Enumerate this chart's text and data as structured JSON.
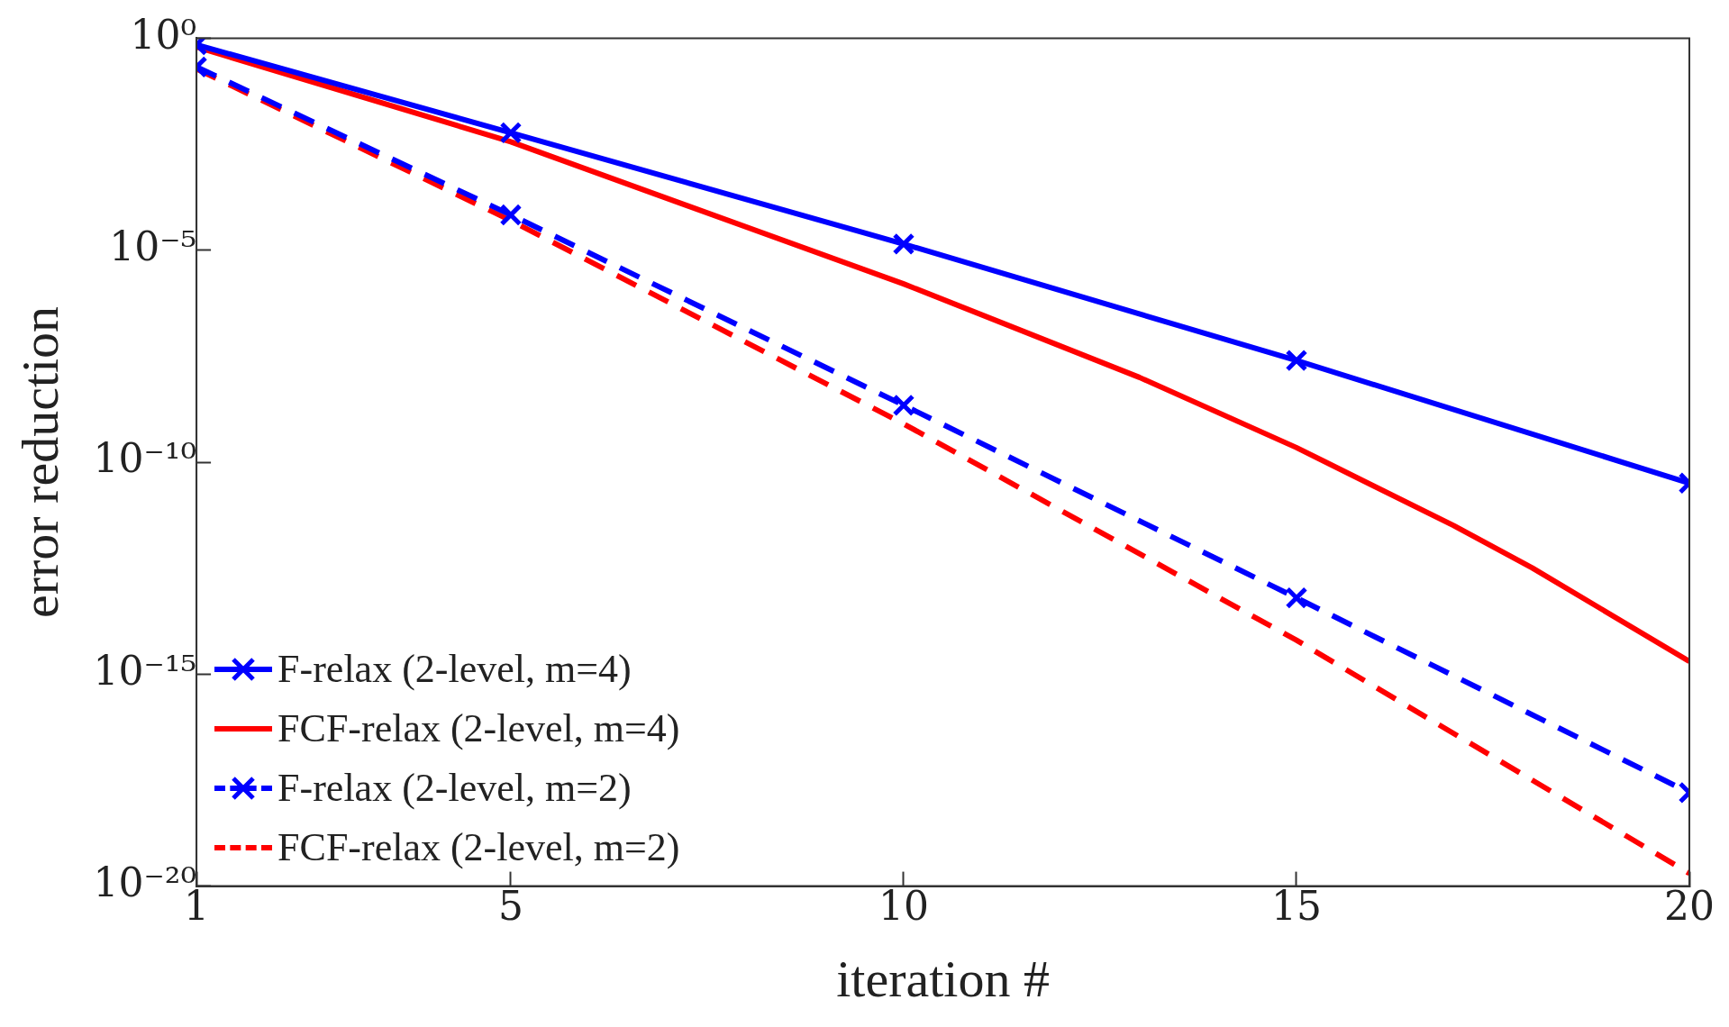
{
  "chart_data": {
    "type": "line",
    "xlabel": "iteration #",
    "ylabel": "error reduction",
    "log": "y",
    "xlim": [
      1,
      20
    ],
    "xticks": [
      1,
      5,
      10,
      15,
      20
    ],
    "ylim": [
      1e-20,
      1
    ],
    "yticks": [
      {
        "value": 1,
        "label": "10⁰"
      },
      {
        "value": 1e-05,
        "label": "10⁻⁵"
      },
      {
        "value": 1e-10,
        "label": "10⁻¹⁰"
      },
      {
        "value": 1e-15,
        "label": "10⁻¹⁵"
      },
      {
        "value": 1e-20,
        "label": "10⁻²⁰"
      }
    ],
    "grid": false,
    "legend": "bottom left",
    "series": [
      {
        "name": "F-relax (2-level, m=4)",
        "color": "#0000ff",
        "marker": "cross",
        "line_style": "solid",
        "x": [
          1,
          5,
          10,
          15,
          20
        ],
        "values": [
          0.7,
          0.0059,
          1.4e-05,
          2.5e-08,
          3.2e-11
        ]
      },
      {
        "name": "FCF-relax (2-level, m=4)",
        "color": "#ff0000",
        "marker": "none",
        "line_style": "solid",
        "x": [
          1,
          5,
          10,
          13,
          15,
          17,
          18,
          20
        ],
        "values": [
          0.62,
          0.0036,
          1.6e-06,
          1e-08,
          2.2e-10,
          3.2e-12,
          3.2e-13,
          2e-15
        ]
      },
      {
        "name": "F-relax (2-level, m=2)",
        "color": "#0000ff",
        "marker": "cross",
        "line_style": "dashed",
        "x": [
          1,
          5,
          10,
          15,
          20
        ],
        "values": [
          0.21,
          6.8e-05,
          2.2e-09,
          6.3e-14,
          1.6e-18
        ]
      },
      {
        "name": "FCF-relax (2-level, m=2)",
        "color": "#ff0000",
        "marker": "none",
        "line_style": "dashed",
        "x": [
          1,
          5,
          10,
          15,
          20
        ],
        "values": [
          0.19,
          5e-05,
          8e-10,
          6.3e-15,
          2e-20
        ]
      }
    ]
  }
}
